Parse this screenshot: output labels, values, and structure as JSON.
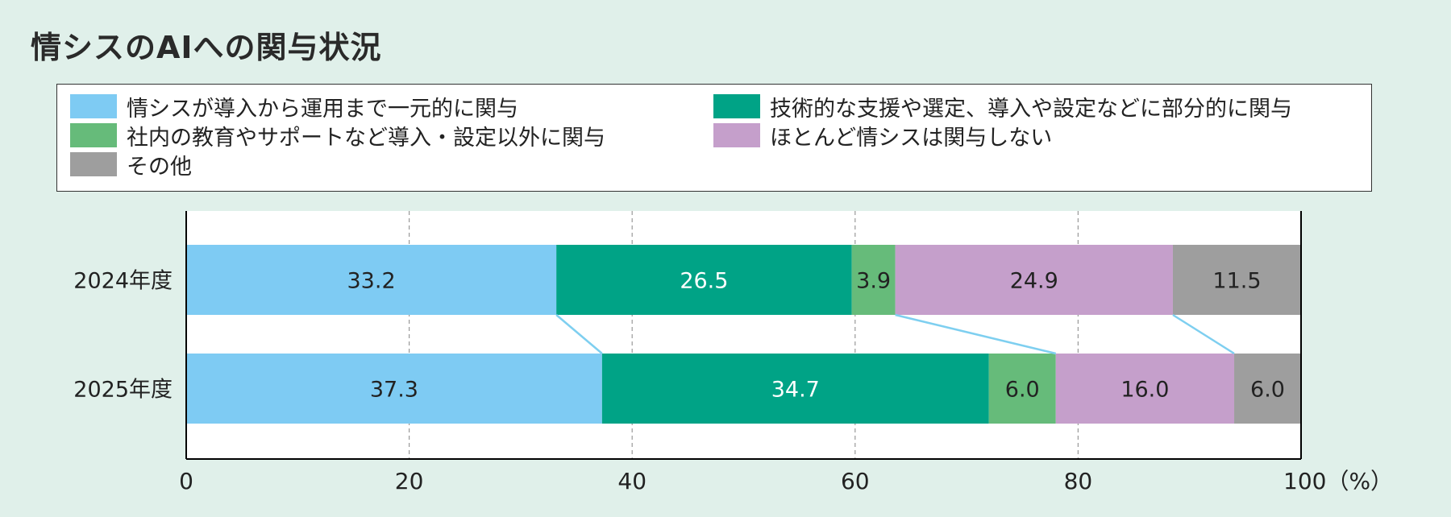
{
  "title": "情シスのAIへの関与状況",
  "colors": {
    "background": "#e0f0ea",
    "plot_background": "#ffffff",
    "connector": "#7ecff0"
  },
  "legend": [
    {
      "label": "情シスが導入から運用まで一元的に関与",
      "color": "#7ecbf3"
    },
    {
      "label": "技術的な支援や選定、導入や設定などに部分的に関与",
      "color": "#00a386"
    },
    {
      "label": "社内の教育やサポートなど導入・設定以外に関与",
      "color": "#66bb7a"
    },
    {
      "label": "ほとんど情シスは関与しない",
      "color": "#c59fcb"
    },
    {
      "label": "その他",
      "color": "#9e9e9e"
    }
  ],
  "chart_data": {
    "type": "bar",
    "orientation": "horizontal",
    "stacked": true,
    "title": "情シスのAIへの関与状況",
    "categories": [
      "2024年度",
      "2025年度"
    ],
    "series": [
      {
        "name": "情シスが導入から運用まで一元的に関与",
        "values": [
          33.2,
          37.3
        ],
        "label_color": "#222222"
      },
      {
        "name": "技術的な支援や選定、導入や設定などに部分的に関与",
        "values": [
          26.5,
          34.7
        ],
        "label_color": "#ffffff"
      },
      {
        "name": "社内の教育やサポートなど導入・設定以外に関与",
        "values": [
          3.9,
          6.0
        ],
        "label_color": "#222222"
      },
      {
        "name": "ほとんど情シスは関与しない",
        "values": [
          24.9,
          16.0
        ],
        "label_color": "#222222"
      },
      {
        "name": "その他",
        "values": [
          11.5,
          6.0
        ],
        "label_color": "#222222"
      }
    ],
    "value_labels": [
      [
        "33.2",
        "26.5",
        "3.9",
        "24.9",
        "11.5"
      ],
      [
        "37.3",
        "34.7",
        "6.0",
        "16.0",
        "6.0"
      ]
    ],
    "xlim": [
      0,
      100
    ],
    "xticks": [
      0,
      20,
      40,
      60,
      80,
      100
    ],
    "xtick_labels": [
      "0",
      "20",
      "40",
      "60",
      "80",
      "100（%）"
    ],
    "grid": "vertical dashed",
    "legend_position": "top",
    "connector_lines": true
  }
}
